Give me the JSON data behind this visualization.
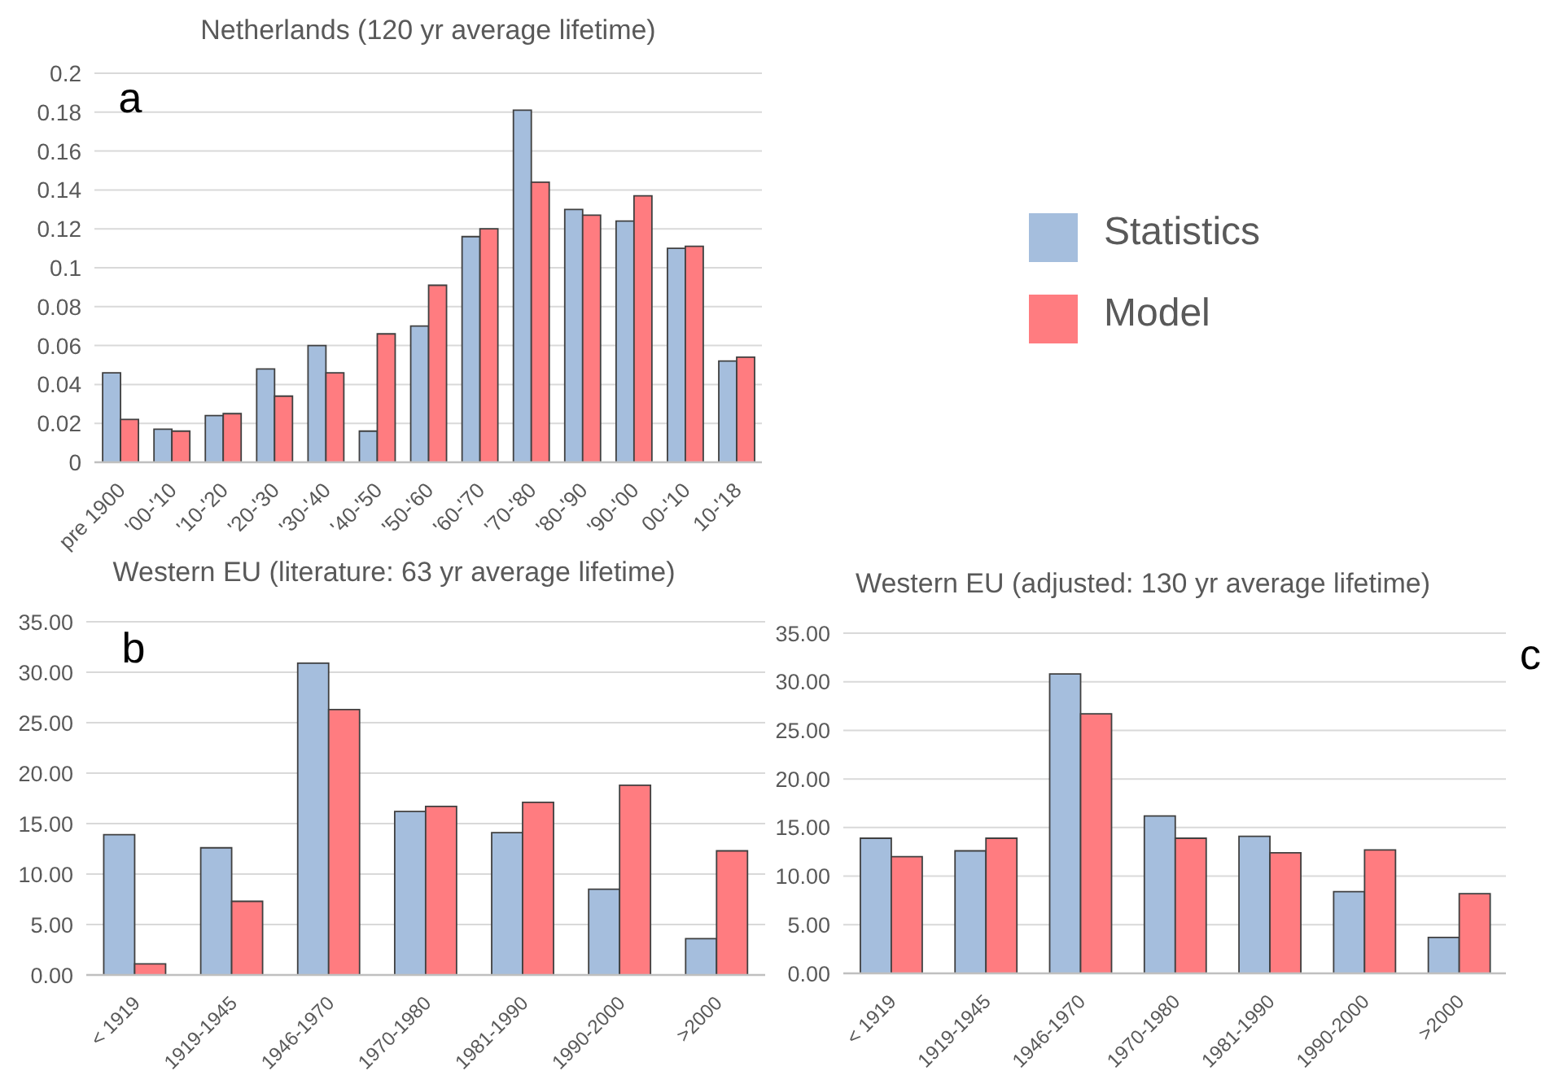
{
  "chart_data": [
    {
      "type": "bar",
      "title": "Netherlands (120 yr average lifetime)",
      "categories": [
        "pre 1900",
        "'00-'10",
        "'10-'20",
        "'20-'30",
        "'30-'40",
        "'40-'50",
        "'50-'60",
        "'60-'70",
        "'70-'80",
        "'80-'90",
        "'90-'00",
        "00-'10",
        "10-'18"
      ],
      "series": [
        {
          "name": "Statistics",
          "color": "#a5bedd",
          "values": [
            0.046,
            0.017,
            0.024,
            0.048,
            0.06,
            0.016,
            0.07,
            0.116,
            0.181,
            0.13,
            0.124,
            0.11,
            0.052
          ]
        },
        {
          "name": "Model",
          "color": "#ff7c80",
          "values": [
            0.022,
            0.016,
            0.025,
            0.034,
            0.046,
            0.066,
            0.091,
            0.12,
            0.144,
            0.127,
            0.137,
            0.111,
            0.054
          ]
        }
      ],
      "ylim": [
        0,
        0.2
      ],
      "yticks": [
        0,
        0.02,
        0.04,
        0.06,
        0.08,
        0.1,
        0.12,
        0.14,
        0.16,
        0.18,
        0.2
      ],
      "grid": "y",
      "legend": "right",
      "annotations": [
        "a"
      ]
    },
    {
      "type": "bar",
      "title": "Western EU (literature: 63 yr average lifetime)",
      "categories": [
        "< 1919",
        "1919-1945",
        "1946-1970",
        "1970-1980",
        "1981-1990",
        "1990-2000",
        ">2000"
      ],
      "series": [
        {
          "color": "#a5bedd",
          "values": [
            13.9,
            12.6,
            30.9,
            16.2,
            14.1,
            8.5,
            3.6
          ]
        },
        {
          "color": "#ff7c80",
          "values": [
            1.1,
            7.3,
            26.3,
            16.7,
            17.1,
            18.8,
            12.3
          ]
        }
      ],
      "ylim": [
        0,
        35
      ],
      "yticks": [
        {
          "value": 0,
          "label": "0.00"
        },
        {
          "value": 5,
          "label": "5.00"
        },
        {
          "value": 10,
          "label": "10.00"
        },
        {
          "value": 15,
          "label": "15.00"
        },
        {
          "value": 20,
          "label": "20.00"
        },
        {
          "value": 25,
          "label": "25.00"
        },
        {
          "value": 30,
          "label": "30.00"
        },
        {
          "value": 35,
          "label": "35.00"
        }
      ],
      "grid": "y",
      "annotations": [
        "b"
      ]
    },
    {
      "type": "bar",
      "title": "Western EU (adjusted: 130 yr average lifetime)",
      "categories": [
        "< 1919",
        "1919-1945",
        "1946-1970",
        "1970-1980",
        "1981-1990",
        "1990-2000",
        ">2000"
      ],
      "series": [
        {
          "color": "#a5bedd",
          "values": [
            13.9,
            12.6,
            30.8,
            16.2,
            14.1,
            8.4,
            3.7
          ]
        },
        {
          "color": "#ff7c80",
          "values": [
            12.0,
            13.9,
            26.7,
            13.9,
            12.4,
            12.7,
            8.2
          ]
        }
      ],
      "ylim": [
        0,
        35
      ],
      "yticks": [
        {
          "value": 0,
          "label": "0.00"
        },
        {
          "value": 5,
          "label": "5.00"
        },
        {
          "value": 10,
          "label": "10.00"
        },
        {
          "value": 15,
          "label": "15.00"
        },
        {
          "value": 20,
          "label": "20.00"
        },
        {
          "value": 25,
          "label": "25.00"
        },
        {
          "value": 30,
          "label": "30.00"
        },
        {
          "value": 35,
          "label": "35.00"
        }
      ],
      "grid": "y",
      "annotations": [
        "c"
      ]
    }
  ]
}
